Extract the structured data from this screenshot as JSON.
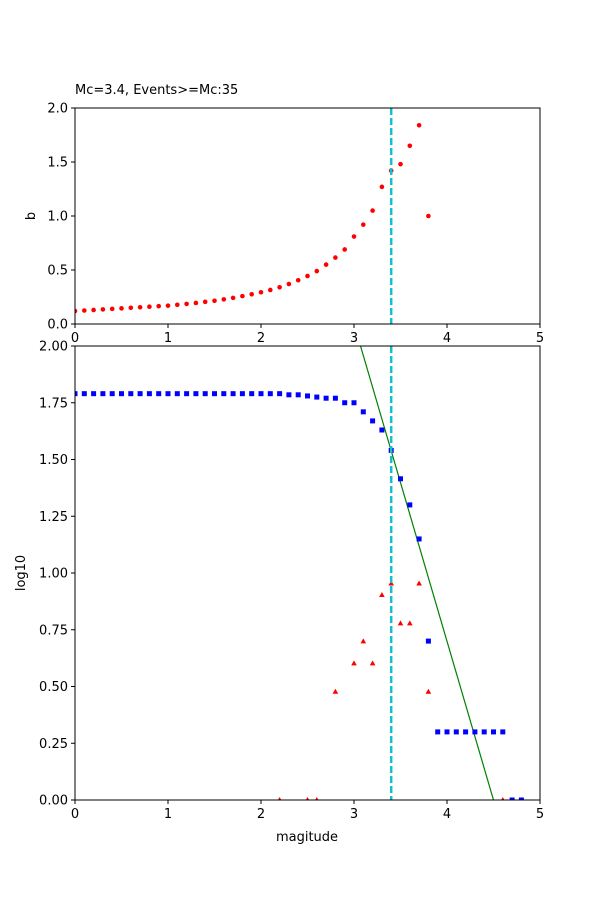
{
  "chart_data": [
    {
      "type": "scatter",
      "title": "Mc=3.4, Events>=Mc:35",
      "xlabel": "",
      "ylabel": "b",
      "xlim": [
        0,
        5
      ],
      "ylim": [
        0,
        2.0
      ],
      "xticks": [
        0,
        1,
        2,
        3,
        4,
        5
      ],
      "yticks": [
        "0.0",
        "0.5",
        "1.0",
        "1.5",
        "2.0"
      ],
      "grid": false,
      "mc_line": 3.4,
      "colors": {
        "b_values": "#ff0000",
        "mc_line": "#17becf"
      },
      "series": [
        {
          "marker": "circle",
          "x": [
            0.0,
            0.1,
            0.2,
            0.3,
            0.4,
            0.5,
            0.6,
            0.7,
            0.8,
            0.9,
            1.0,
            1.1,
            1.2,
            1.3,
            1.4,
            1.5,
            1.6,
            1.7,
            1.8,
            1.9,
            2.0,
            2.1,
            2.2,
            2.3,
            2.4,
            2.5,
            2.6,
            2.7,
            2.8,
            2.9,
            3.0,
            3.1,
            3.2,
            3.3,
            3.4,
            3.5,
            3.6,
            3.7,
            3.8
          ],
          "y": [
            0.12,
            0.125,
            0.13,
            0.135,
            0.14,
            0.145,
            0.15,
            0.155,
            0.16,
            0.165,
            0.17,
            0.178,
            0.186,
            0.195,
            0.205,
            0.215,
            0.228,
            0.242,
            0.258,
            0.275,
            0.294,
            0.315,
            0.34,
            0.37,
            0.405,
            0.445,
            0.49,
            0.55,
            0.615,
            0.69,
            0.81,
            0.92,
            1.05,
            1.27,
            1.42,
            1.48,
            1.65,
            1.84,
            1.0
          ]
        }
      ]
    },
    {
      "type": "scatter",
      "title": "",
      "xlabel": "magitude",
      "ylabel": "log10",
      "xlim": [
        0,
        5
      ],
      "ylim": [
        0,
        2.0
      ],
      "xticks": [
        0,
        1,
        2,
        3,
        4,
        5
      ],
      "yticks": [
        "0.00",
        "0.25",
        "0.50",
        "0.75",
        "1.00",
        "1.25",
        "1.50",
        "1.75",
        "2.00"
      ],
      "grid": false,
      "mc_line": 3.4,
      "fit_line": {
        "x": [
          3.07,
          4.5
        ],
        "y": [
          2.0,
          0.0
        ]
      },
      "colors": {
        "cumulative": "#0000ff",
        "non_cumulative": "#ff0000",
        "fit": "#008000",
        "mc_line": "#17becf"
      },
      "series": [
        {
          "marker": "square",
          "x": [
            0.0,
            0.1,
            0.2,
            0.3,
            0.4,
            0.5,
            0.6,
            0.7,
            0.8,
            0.9,
            1.0,
            1.1,
            1.2,
            1.3,
            1.4,
            1.5,
            1.6,
            1.7,
            1.8,
            1.9,
            2.0,
            2.1,
            2.2,
            2.3,
            2.4,
            2.5,
            2.6,
            2.7,
            2.8,
            2.9,
            3.0,
            3.1,
            3.2,
            3.3,
            3.4,
            3.5,
            3.6,
            3.7,
            3.8,
            3.9,
            4.0,
            4.1,
            4.2,
            4.3,
            4.4,
            4.5,
            4.6,
            4.7,
            4.8
          ],
          "y": [
            1.79,
            1.79,
            1.79,
            1.79,
            1.79,
            1.79,
            1.79,
            1.79,
            1.79,
            1.79,
            1.79,
            1.79,
            1.79,
            1.79,
            1.79,
            1.79,
            1.79,
            1.79,
            1.79,
            1.79,
            1.79,
            1.79,
            1.79,
            1.785,
            1.785,
            1.78,
            1.775,
            1.77,
            1.77,
            1.75,
            1.75,
            1.71,
            1.67,
            1.63,
            1.54,
            1.415,
            1.3,
            1.15,
            0.7,
            0.3,
            0.3,
            0.3,
            0.3,
            0.3,
            0.3,
            0.3,
            0.3,
            0.0,
            0.0
          ]
        },
        {
          "marker": "triangle",
          "x": [
            2.2,
            2.5,
            2.6,
            2.8,
            3.0,
            3.1,
            3.2,
            3.3,
            3.4,
            3.5,
            3.6,
            3.7,
            3.8,
            4.6
          ],
          "y": [
            0.0,
            0.0,
            0.0,
            0.477,
            0.602,
            0.699,
            0.602,
            0.903,
            0.954,
            0.778,
            0.778,
            0.954,
            0.477,
            0.0
          ]
        }
      ]
    }
  ]
}
